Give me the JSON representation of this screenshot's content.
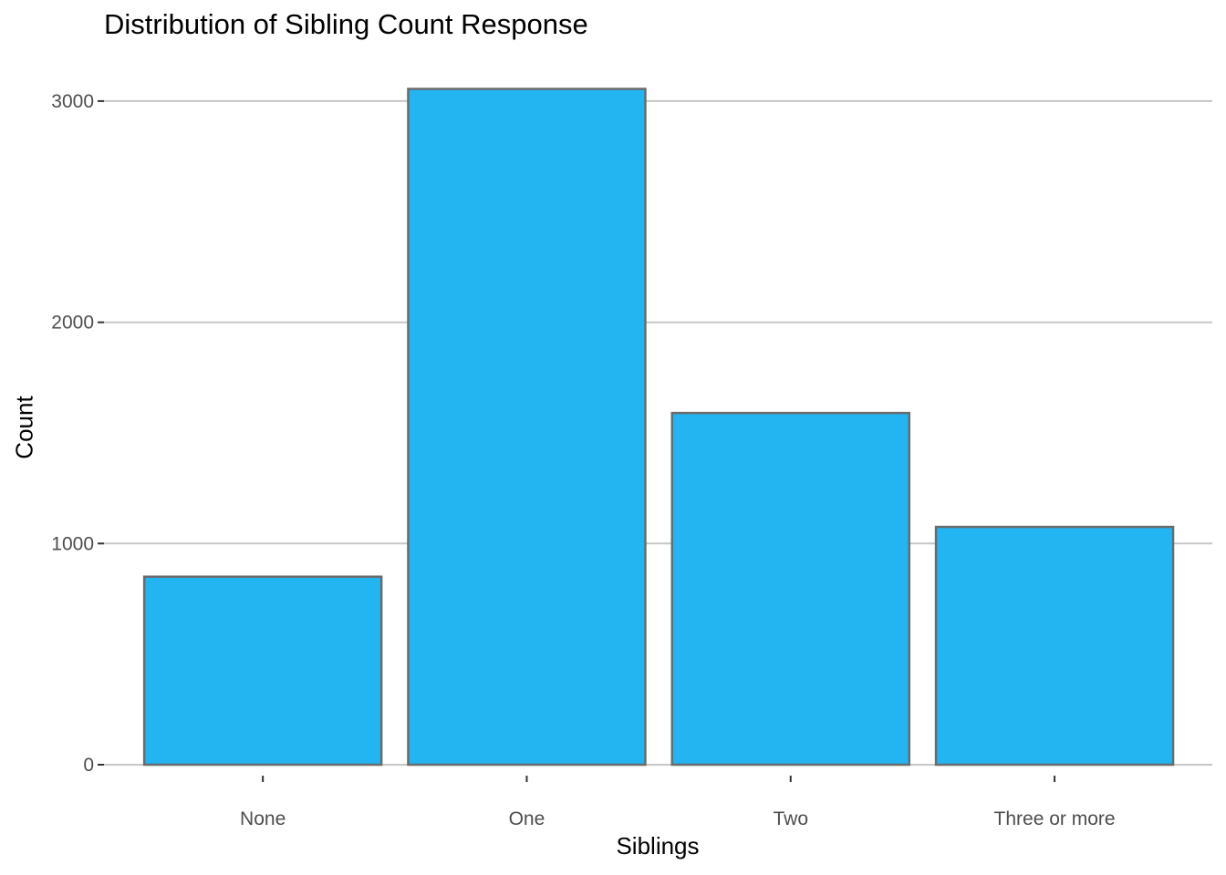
{
  "chart_data": {
    "type": "bar",
    "title": "Distribution of Sibling Count Response",
    "xlabel": "Siblings",
    "ylabel": "Count",
    "categories": [
      "None",
      "One",
      "Two",
      "Three or more"
    ],
    "values": [
      850,
      3055,
      1590,
      1075
    ],
    "ylim": [
      0,
      3000
    ],
    "y_ticks": [
      "0",
      "1000",
      "2000",
      "3000"
    ],
    "grid": "horizontal major",
    "legend": "none",
    "colors": {
      "bar_fill": "#22b5f2",
      "bar_stroke": "#6b6b6b",
      "grid": "#c6c6c6",
      "tick": "#333333",
      "tick_label": "#4d4d4d"
    }
  }
}
